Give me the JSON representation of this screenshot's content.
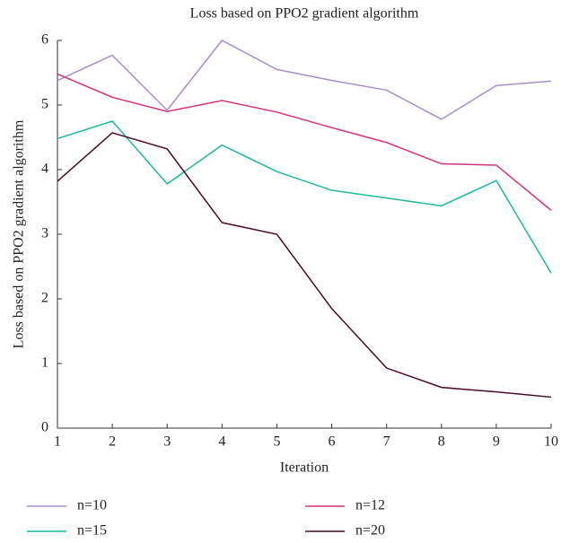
{
  "chart_data": {
    "type": "line",
    "title": "Loss based on PPO2 gradient algorithm",
    "xlabel": "Iteration",
    "ylabel": "Loss based on PPO2 gradient algorithm",
    "x": [
      1,
      2,
      3,
      4,
      5,
      6,
      7,
      8,
      9,
      10
    ],
    "xlim": [
      1,
      10
    ],
    "xticks": [
      1,
      2,
      3,
      4,
      5,
      6,
      7,
      8,
      9,
      10
    ],
    "ylim": [
      0,
      6
    ],
    "yticks": [
      0,
      1,
      2,
      3,
      4,
      5,
      6
    ],
    "legend": "bottom",
    "series": [
      {
        "name": "n=10",
        "color": "#a98fc9",
        "values": [
          5.38,
          5.77,
          4.92,
          6.0,
          5.55,
          5.38,
          5.23,
          4.78,
          5.3,
          5.37
        ]
      },
      {
        "name": "n=12",
        "color": "#d6337f",
        "values": [
          5.48,
          5.12,
          4.9,
          5.07,
          4.89,
          4.65,
          4.42,
          4.09,
          4.07,
          3.37
        ]
      },
      {
        "name": "n=15",
        "color": "#1cb99a",
        "values": [
          4.48,
          4.75,
          3.78,
          4.38,
          3.97,
          3.68,
          3.56,
          3.44,
          3.83,
          2.4
        ]
      },
      {
        "name": "n=20",
        "color": "#4a0a2a",
        "values": [
          3.82,
          4.57,
          4.32,
          3.18,
          3.0,
          1.85,
          0.93,
          0.63,
          0.56,
          0.48
        ]
      }
    ]
  }
}
